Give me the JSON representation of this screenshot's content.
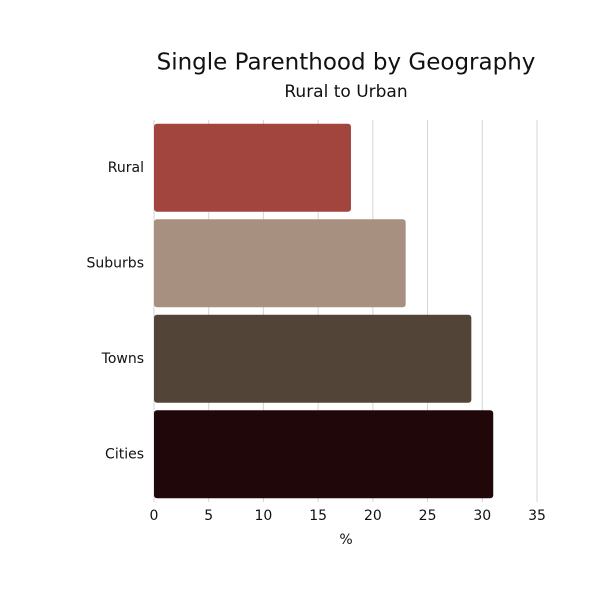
{
  "chart_data": {
    "type": "bar",
    "orientation": "horizontal",
    "title": "Single Parenthood by Geography",
    "subtitle": "Rural to Urban",
    "categories": [
      "Rural",
      "Suburbs",
      "Towns",
      "Cities"
    ],
    "values": [
      18,
      23,
      29,
      31
    ],
    "colors": [
      "#a2453f",
      "#a89080",
      "#534438",
      "#20080a"
    ],
    "xlabel": "%",
    "xlim": [
      0,
      35
    ],
    "xticks": [
      0,
      5,
      10,
      15,
      20,
      25,
      30,
      35
    ],
    "grid": true
  }
}
